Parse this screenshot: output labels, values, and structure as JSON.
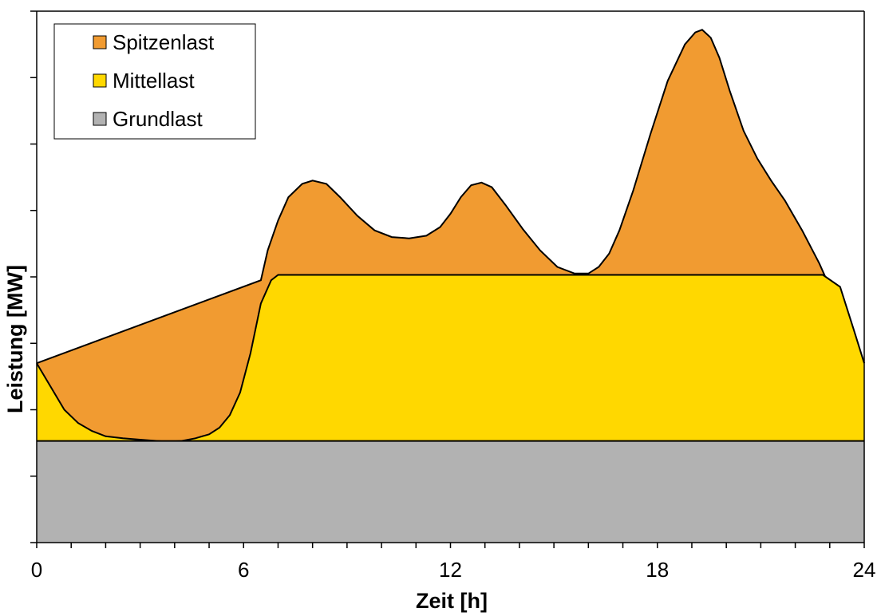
{
  "chart_data": {
    "type": "area",
    "stacked": true,
    "xlabel": "Zeit [h]",
    "ylabel": "Leistung [MW]",
    "xlim": [
      0,
      24
    ],
    "ylim": [
      0,
      8
    ],
    "x_ticks": [
      0,
      6,
      12,
      18,
      24
    ],
    "x_minor_step": 1,
    "y_ticks_labeled": false,
    "y_minor_step": 1,
    "grid": false,
    "legend_position": "top-left",
    "series": [
      {
        "name": "Grundlast",
        "color": "#b2b2b2",
        "x": [
          0,
          24
        ],
        "y": [
          1.53,
          1.53
        ]
      },
      {
        "name": "Mittellast",
        "color": "#ffd800",
        "x": [
          0,
          0.4,
          0.8,
          1.2,
          1.6,
          2.0,
          2.5,
          3.0,
          3.5,
          3.8,
          4.2,
          4.6,
          5.0,
          5.3,
          5.6,
          5.9,
          6.2,
          6.5,
          6.8,
          7.0,
          22.8,
          23.3,
          23.7,
          24
        ],
        "y": [
          2.7,
          2.35,
          2.0,
          1.8,
          1.68,
          1.6,
          1.57,
          1.55,
          1.53,
          1.52,
          1.53,
          1.57,
          1.63,
          1.73,
          1.92,
          2.26,
          2.85,
          3.6,
          3.95,
          4.03,
          4.03,
          3.85,
          3.2,
          2.7
        ]
      },
      {
        "name": "Spitzenlast",
        "color": "#f19b31",
        "x": [
          0,
          6.5,
          6.7,
          7.0,
          7.3,
          7.7,
          8.0,
          8.4,
          8.8,
          9.3,
          9.8,
          10.3,
          10.8,
          11.3,
          11.7,
          12.0,
          12.3,
          12.6,
          12.9,
          13.2,
          13.6,
          14.1,
          14.6,
          15.1,
          15.6,
          16.0,
          16.3,
          16.6,
          16.9,
          17.3,
          17.8,
          18.3,
          18.8,
          19.1,
          19.3,
          19.55,
          19.8,
          20.1,
          20.5,
          20.9,
          21.3,
          21.7,
          22.2,
          22.7,
          23.0,
          23.3,
          23.7,
          24
        ],
        "y": [
          2.7,
          3.95,
          4.4,
          4.85,
          5.2,
          5.4,
          5.45,
          5.4,
          5.2,
          4.92,
          4.7,
          4.6,
          4.58,
          4.62,
          4.75,
          4.95,
          5.2,
          5.38,
          5.42,
          5.35,
          5.08,
          4.72,
          4.4,
          4.15,
          4.05,
          4.05,
          4.15,
          4.35,
          4.7,
          5.3,
          6.15,
          6.95,
          7.5,
          7.68,
          7.72,
          7.6,
          7.3,
          6.8,
          6.2,
          5.78,
          5.45,
          5.15,
          4.7,
          4.2,
          3.85,
          3.35,
          3.0,
          2.7
        ]
      }
    ]
  }
}
